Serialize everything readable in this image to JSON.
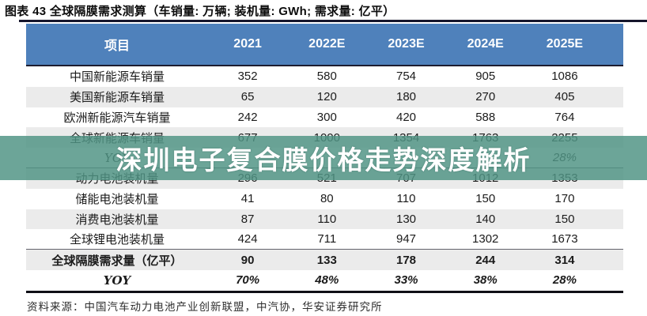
{
  "title": "图表 43 全球隔膜需求测算（车销量: 万辆; 装机量: GWh; 需求量: 亿平）",
  "watermark": {
    "text": "深圳电子复合膜价格走势深度解析"
  },
  "source": {
    "text": "资料来源：中国汽车动力电池产业创新联盟，中汽协，华安证券研究所"
  },
  "colors": {
    "header_bg": "#4f81bb",
    "header_text": "#ffffff",
    "stripe_bg": "#ebebeb",
    "banner_bg": "rgba(80,148,132,0.84)",
    "banner_text": "#ffffff",
    "rule_dark": "#16162c"
  },
  "chart_data": {
    "type": "table",
    "title": "全球隔膜需求测算",
    "units": {
      "车销量": "万辆",
      "装机量": "GWh",
      "需求量": "亿平"
    },
    "columns": [
      "项目",
      "2021",
      "2022E",
      "2023E",
      "2024E",
      "2025E"
    ],
    "rows": [
      {
        "label": "中国新能源车销量",
        "values": [
          "352",
          "580",
          "754",
          "905",
          "1086"
        ]
      },
      {
        "label": "美国新能源车销量",
        "values": [
          "65",
          "120",
          "180",
          "270",
          "405"
        ]
      },
      {
        "label": "欧洲新能源汽车销量",
        "values": [
          "242",
          "300",
          "420",
          "588",
          "764"
        ]
      },
      {
        "label": "全球新能源车销量",
        "values": [
          "677",
          "1000",
          "1354",
          "1763",
          "2255"
        ]
      },
      {
        "label": "YOY",
        "values": [
          "",
          "",
          "",
          "",
          "28%"
        ],
        "note": "2021-2024E values obscured by watermark banner"
      },
      {
        "label": "动力电池装机量",
        "values": [
          "296",
          "521",
          "707",
          "1012",
          "1353"
        ]
      },
      {
        "label": "储能电池装机量",
        "values": [
          "41",
          "80",
          "110",
          "150",
          "170"
        ]
      },
      {
        "label": "消费电池装机量",
        "values": [
          "87",
          "110",
          "130",
          "140",
          "150"
        ]
      },
      {
        "label": "全球锂电池装机量",
        "values": [
          "424",
          "711",
          "947",
          "1302",
          "1673"
        ]
      },
      {
        "label": "全球隔膜需求量（亿平）",
        "values": [
          "90",
          "133",
          "178",
          "244",
          "314"
        ]
      },
      {
        "label": "YOY",
        "values": [
          "70%",
          "48%",
          "33%",
          "38%",
          "28%"
        ]
      }
    ]
  }
}
